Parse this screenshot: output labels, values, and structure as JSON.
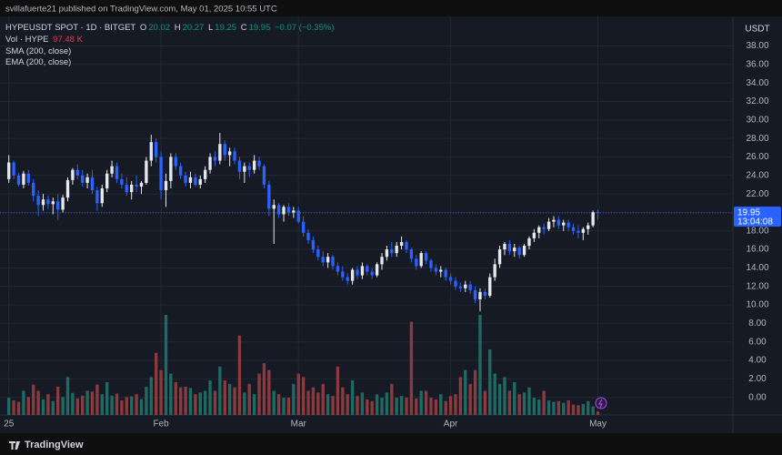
{
  "chart_data": {
    "type": "candlestick",
    "header": "svillafuerte21 published on TradingView.com, May 01, 2025 10:55 UTC",
    "symbol": "HYPEUSDT SPOT · 1D · BITGET",
    "ohlc_letters": [
      "O",
      "H",
      "L",
      "C"
    ],
    "change": "−0.07 (−0.35%)",
    "volume_name": "Vol · HYPE",
    "volume_last_label": "97.48 K",
    "indicators": [
      "SMA (200, close)",
      "EMA (200, close)"
    ],
    "currency": "USDT",
    "countdown": "13:04:08",
    "footer": "TradingView",
    "up_color": "#e6e8ee",
    "down_color": "#2962ff",
    "volume_up_color": "#1f6b63",
    "volume_down_color": "#8c3a3e",
    "last_price_color": "#2962ff",
    "grid": true,
    "xlim": [
      -1.8,
      147.5
    ],
    "xticks": [
      {
        "value": 0,
        "label": "25"
      },
      {
        "value": 31,
        "label": "Feb"
      },
      {
        "value": 59,
        "label": "Mar"
      },
      {
        "value": 90,
        "label": "Apr"
      },
      {
        "value": 120,
        "label": "May"
      }
    ],
    "ylim": [
      -1.9,
      41.2
    ],
    "yticks": [
      {
        "value": 0,
        "label": "0.00"
      },
      {
        "value": 2,
        "label": "2.00"
      },
      {
        "value": 4,
        "label": "4.00"
      },
      {
        "value": 6,
        "label": "6.00"
      },
      {
        "value": 8,
        "label": "8.00"
      },
      {
        "value": 10,
        "label": "10.00"
      },
      {
        "value": 12,
        "label": "12.00"
      },
      {
        "value": 14,
        "label": "14.00"
      },
      {
        "value": 16,
        "label": "16.00"
      },
      {
        "value": 18,
        "label": "18.00"
      },
      {
        "value": 20,
        "label": "20.00"
      },
      {
        "value": 22,
        "label": "22.00"
      },
      {
        "value": 24,
        "label": "24.00"
      },
      {
        "value": 26,
        "label": "26.00"
      },
      {
        "value": 28,
        "label": "28.00"
      },
      {
        "value": 30,
        "label": "30.00"
      },
      {
        "value": 32,
        "label": "32.00"
      },
      {
        "value": 34,
        "label": "34.00"
      },
      {
        "value": 36,
        "label": "36.00"
      },
      {
        "value": 38,
        "label": "38.00"
      }
    ],
    "candles": [
      [
        23.6,
        26.2,
        23.2,
        25.4
      ],
      [
        25.4,
        25.6,
        23.6,
        24.0
      ],
      [
        24.0,
        24.3,
        22.8,
        23.0
      ],
      [
        23.0,
        24.5,
        22.6,
        24.2
      ],
      [
        24.2,
        24.6,
        22.9,
        23.2
      ],
      [
        23.2,
        23.6,
        21.2,
        21.8
      ],
      [
        21.8,
        22.4,
        19.6,
        20.8
      ],
      [
        20.8,
        22.0,
        20.2,
        21.4
      ],
      [
        21.4,
        21.8,
        20.4,
        20.9
      ],
      [
        20.9,
        21.6,
        19.8,
        21.2
      ],
      [
        21.2,
        22.0,
        19.2,
        20.3
      ],
      [
        20.3,
        21.9,
        20.0,
        21.6
      ],
      [
        21.6,
        23.8,
        21.2,
        23.5
      ],
      [
        23.5,
        24.8,
        23.0,
        24.6
      ],
      [
        24.6,
        25.2,
        23.6,
        24.0
      ],
      [
        24.0,
        24.6,
        22.8,
        23.2
      ],
      [
        23.2,
        24.2,
        22.6,
        23.8
      ],
      [
        23.8,
        24.6,
        22.0,
        22.4
      ],
      [
        22.4,
        22.8,
        20.2,
        21.0
      ],
      [
        21.0,
        23.0,
        20.6,
        22.6
      ],
      [
        22.6,
        24.6,
        22.2,
        24.2
      ],
      [
        24.2,
        25.6,
        23.8,
        25.0
      ],
      [
        25.0,
        25.4,
        23.2,
        23.6
      ],
      [
        23.6,
        24.2,
        22.6,
        23.0
      ],
      [
        23.0,
        23.8,
        21.8,
        22.2
      ],
      [
        22.2,
        23.4,
        21.4,
        23.0
      ],
      [
        23.0,
        24.0,
        22.2,
        22.8
      ],
      [
        22.8,
        23.4,
        22.0,
        23.2
      ],
      [
        23.2,
        26.0,
        23.0,
        25.6
      ],
      [
        25.6,
        28.4,
        25.0,
        27.6
      ],
      [
        27.6,
        28.0,
        25.4,
        26.0
      ],
      [
        26.0,
        26.6,
        21.4,
        22.4
      ],
      [
        22.4,
        24.2,
        20.6,
        23.4
      ],
      [
        23.4,
        26.4,
        22.6,
        26.0
      ],
      [
        26.0,
        26.4,
        24.6,
        25.0
      ],
      [
        25.0,
        25.4,
        23.6,
        24.0
      ],
      [
        24.0,
        24.4,
        22.8,
        23.2
      ],
      [
        23.2,
        24.4,
        22.6,
        23.8
      ],
      [
        23.8,
        24.2,
        22.8,
        23.0
      ],
      [
        23.0,
        24.0,
        22.6,
        23.6
      ],
      [
        23.6,
        25.0,
        23.2,
        24.6
      ],
      [
        24.6,
        26.4,
        24.2,
        26.0
      ],
      [
        26.0,
        26.6,
        25.0,
        25.6
      ],
      [
        25.6,
        28.6,
        25.2,
        27.4
      ],
      [
        27.4,
        27.8,
        25.6,
        26.2
      ],
      [
        26.2,
        27.0,
        25.0,
        26.6
      ],
      [
        26.6,
        27.0,
        25.2,
        25.6
      ],
      [
        25.6,
        26.0,
        23.6,
        24.4
      ],
      [
        24.4,
        25.4,
        23.2,
        25.0
      ],
      [
        25.0,
        25.4,
        23.8,
        24.6
      ],
      [
        24.6,
        26.2,
        24.2,
        25.6
      ],
      [
        25.6,
        26.0,
        24.6,
        25.0
      ],
      [
        25.0,
        25.2,
        22.6,
        23.0
      ],
      [
        23.0,
        23.4,
        19.6,
        20.4
      ],
      [
        20.4,
        21.4,
        16.6,
        20.8
      ],
      [
        20.8,
        21.0,
        19.4,
        19.8
      ],
      [
        19.8,
        20.8,
        19.0,
        20.6
      ],
      [
        20.6,
        21.0,
        19.6,
        20.0
      ],
      [
        20.0,
        20.6,
        19.4,
        20.2
      ],
      [
        20.2,
        20.6,
        18.8,
        19.0
      ],
      [
        19.0,
        19.6,
        17.4,
        17.8
      ],
      [
        17.8,
        18.2,
        16.6,
        17.0
      ],
      [
        17.0,
        17.4,
        15.6,
        16.0
      ],
      [
        16.0,
        16.4,
        14.8,
        15.2
      ],
      [
        15.2,
        15.8,
        14.2,
        14.6
      ],
      [
        14.6,
        15.6,
        14.0,
        15.2
      ],
      [
        15.2,
        15.4,
        13.8,
        14.2
      ],
      [
        14.2,
        14.6,
        13.2,
        13.6
      ],
      [
        13.6,
        14.2,
        12.6,
        13.0
      ],
      [
        13.0,
        13.4,
        12.2,
        12.6
      ],
      [
        12.6,
        14.0,
        12.2,
        13.8
      ],
      [
        13.8,
        14.2,
        12.8,
        13.2
      ],
      [
        13.2,
        14.6,
        12.8,
        14.2
      ],
      [
        14.2,
        14.4,
        13.2,
        13.6
      ],
      [
        13.6,
        14.0,
        12.8,
        13.2
      ],
      [
        13.2,
        14.6,
        13.0,
        14.4
      ],
      [
        14.4,
        15.6,
        13.8,
        15.2
      ],
      [
        15.2,
        16.4,
        14.8,
        16.0
      ],
      [
        16.0,
        16.8,
        15.2,
        15.6
      ],
      [
        15.6,
        16.8,
        15.2,
        16.4
      ],
      [
        16.4,
        17.4,
        16.0,
        16.8
      ],
      [
        16.8,
        17.0,
        15.6,
        16.0
      ],
      [
        16.0,
        16.2,
        14.6,
        15.0
      ],
      [
        15.0,
        15.4,
        13.8,
        14.2
      ],
      [
        14.2,
        15.8,
        14.0,
        15.6
      ],
      [
        15.6,
        15.8,
        14.4,
        14.8
      ],
      [
        14.8,
        15.0,
        13.6,
        14.0
      ],
      [
        14.0,
        14.4,
        13.2,
        13.6
      ],
      [
        13.6,
        14.2,
        13.0,
        13.8
      ],
      [
        13.8,
        14.0,
        12.6,
        13.0
      ],
      [
        13.0,
        13.4,
        12.2,
        12.6
      ],
      [
        12.6,
        13.0,
        11.6,
        12.0
      ],
      [
        12.0,
        12.4,
        11.4,
        11.8
      ],
      [
        11.8,
        12.6,
        11.4,
        12.2
      ],
      [
        12.2,
        12.6,
        11.2,
        11.6
      ],
      [
        11.6,
        12.0,
        10.2,
        10.6
      ],
      [
        10.6,
        11.8,
        9.3,
        11.4
      ],
      [
        11.4,
        11.8,
        10.6,
        11.0
      ],
      [
        11.0,
        13.4,
        10.8,
        13.0
      ],
      [
        13.0,
        15.0,
        12.6,
        14.4
      ],
      [
        14.4,
        16.4,
        14.0,
        16.0
      ],
      [
        16.0,
        16.8,
        15.4,
        16.6
      ],
      [
        16.6,
        17.0,
        15.4,
        15.8
      ],
      [
        15.8,
        16.6,
        15.2,
        16.2
      ],
      [
        16.2,
        16.4,
        15.0,
        15.4
      ],
      [
        15.4,
        16.6,
        15.2,
        16.4
      ],
      [
        16.4,
        17.4,
        16.0,
        17.2
      ],
      [
        17.2,
        18.2,
        16.8,
        17.8
      ],
      [
        17.8,
        18.6,
        17.2,
        18.4
      ],
      [
        18.4,
        18.8,
        17.6,
        18.2
      ],
      [
        18.2,
        19.4,
        18.0,
        19.0
      ],
      [
        19.0,
        19.6,
        18.4,
        19.2
      ],
      [
        19.2,
        19.6,
        18.2,
        18.6
      ],
      [
        18.6,
        19.2,
        18.0,
        18.9
      ],
      [
        18.9,
        19.2,
        18.0,
        18.4
      ],
      [
        18.4,
        18.8,
        17.6,
        18.0
      ],
      [
        18.0,
        18.6,
        17.2,
        17.8
      ],
      [
        17.8,
        18.4,
        17.0,
        18.2
      ],
      [
        18.2,
        18.9,
        17.6,
        18.6
      ],
      [
        18.6,
        20.2,
        18.4,
        20.02
      ],
      [
        20.02,
        20.27,
        19.25,
        19.95
      ]
    ],
    "volume": [
      500,
      420,
      380,
      700,
      520,
      880,
      700,
      450,
      600,
      400,
      820,
      520,
      1100,
      640,
      480,
      560,
      700,
      680,
      880,
      600,
      950,
      560,
      620,
      420,
      520,
      540,
      600,
      460,
      820,
      1100,
      1800,
      1300,
      2900,
      1200,
      950,
      800,
      820,
      780,
      600,
      650,
      700,
      1000,
      700,
      1400,
      1000,
      900,
      800,
      2300,
      650,
      900,
      600,
      1200,
      1500,
      1300,
      700,
      600,
      500,
      500,
      900,
      1200,
      1100,
      700,
      800,
      650,
      900,
      600,
      550,
      1400,
      800,
      600,
      1000,
      550,
      650,
      450,
      400,
      600,
      500,
      650,
      900,
      500,
      550,
      500,
      2700,
      480,
      700,
      700,
      500,
      450,
      600,
      400,
      550,
      600,
      1100,
      1300,
      900,
      1300,
      2900,
      700,
      1900,
      1200,
      900,
      1100,
      700,
      950,
      600,
      650,
      800,
      500,
      450,
      700,
      420,
      380,
      400,
      350,
      420,
      300,
      280,
      320,
      400,
      250,
      97.48
    ]
  }
}
